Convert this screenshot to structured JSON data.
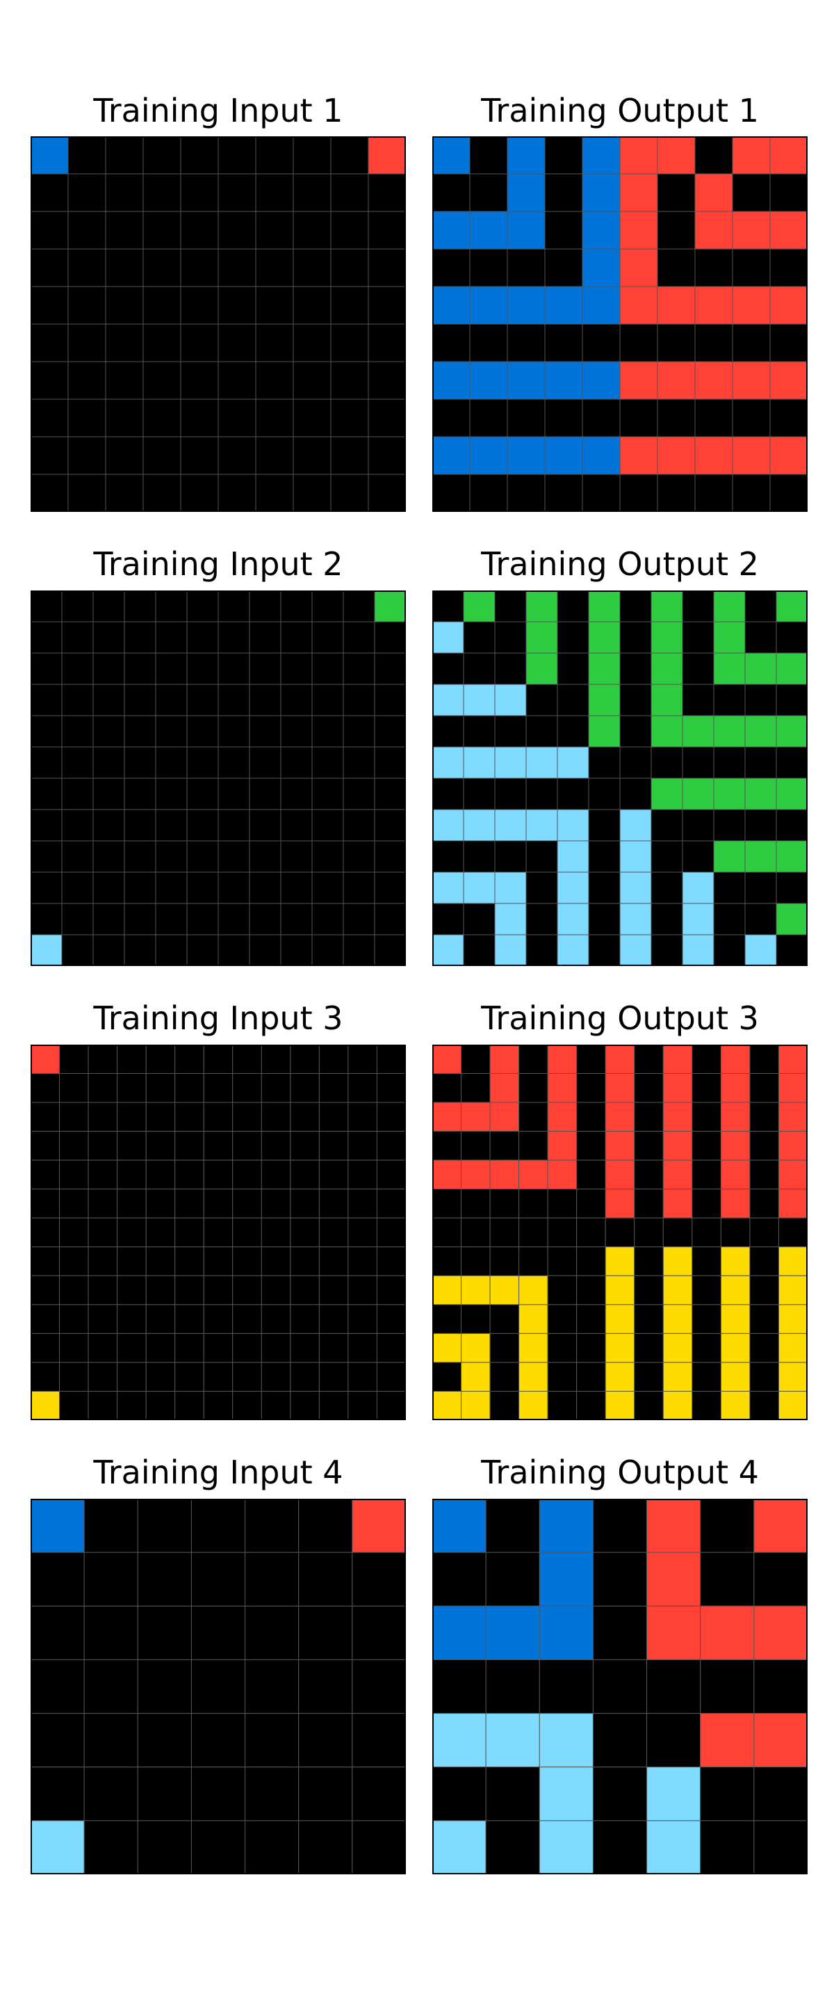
{
  "palette": {
    "0": "#000000",
    "1": "#0074D9",
    "2": "#FF4136",
    "3": "#2ECC40",
    "4": "#FFDC00",
    "8": "#7FDBFF"
  },
  "grid_line_color": "#555555",
  "border_color": "#000000",
  "pairs": [
    {
      "input": {
        "title": "Training Input 1",
        "rows": [
          "1000000002",
          "0000000000",
          "0000000000",
          "0000000000",
          "0000000000",
          "0000000000",
          "0000000000",
          "0000000000",
          "0000000000",
          "0000000000"
        ]
      },
      "output": {
        "title": "Training Output 1",
        "rows": [
          "1010122022",
          "0010120200",
          "1110120222",
          "0000120000",
          "1111122222",
          "0000000000",
          "1111122222",
          "0000000000",
          "1111122222",
          "0000000000"
        ]
      }
    },
    {
      "input": {
        "title": "Training Input 2",
        "rows": [
          "000000000003",
          "000000000000",
          "000000000000",
          "000000000000",
          "000000000000",
          "000000000000",
          "000000000000",
          "000000000000",
          "000000000000",
          "000000000000",
          "000000000000",
          "800000000000"
        ]
      },
      "output": {
        "title": "Training Output 2",
        "rows": [
          "030303030303",
          "800303030300",
          "000303030333",
          "888003030000",
          "000003033333",
          "888880000000",
          "000000033333",
          "888880800000",
          "000080800333",
          "888080808000",
          "008080808003",
          "808080808080"
        ]
      }
    },
    {
      "input": {
        "title": "Training Input 3",
        "rows": [
          "2000000000000",
          "0000000000000",
          "0000000000000",
          "0000000000000",
          "0000000000000",
          "0000000000000",
          "0000000000000",
          "0000000000000",
          "0000000000000",
          "0000000000000",
          "0000000000000",
          "0000000000000",
          "4000000000000"
        ]
      },
      "output": {
        "title": "Training Output 3",
        "rows": [
          "2020202020202",
          "0020202020202",
          "2220202020202",
          "0000202020202",
          "2222202020202",
          "0000002020202",
          "0000000000000",
          "0000004040404",
          "4444004040404",
          "0004004040404",
          "4404004040404",
          "0404004040404",
          "4404004040404"
        ]
      }
    },
    {
      "input": {
        "title": "Training Input 4",
        "rows": [
          "1000002",
          "0000000",
          "0000000",
          "0000000",
          "0000000",
          "0000000",
          "8000000"
        ]
      },
      "output": {
        "title": "Training Output 4",
        "rows": [
          "1010202",
          "0010200",
          "1110222",
          "0000000",
          "8880022",
          "0080800",
          "8080800"
        ]
      }
    }
  ]
}
